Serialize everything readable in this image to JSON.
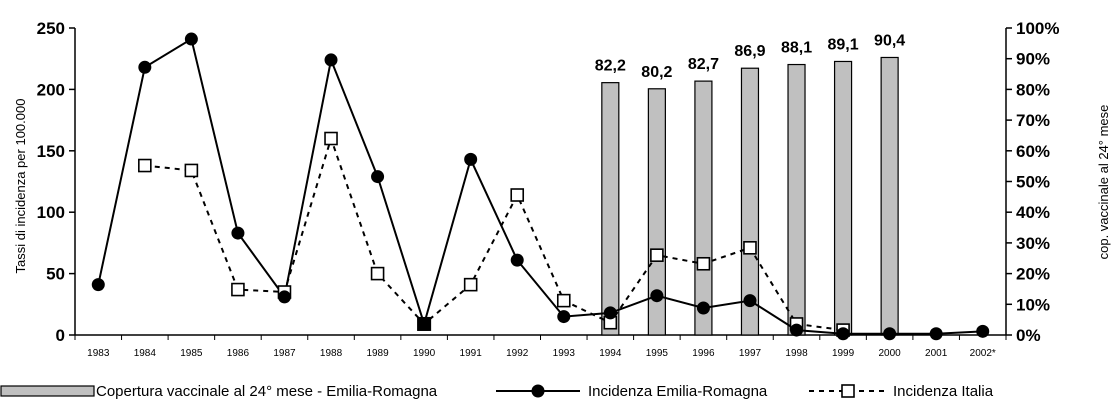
{
  "chart_data": {
    "type": "bar+line",
    "categories": [
      "1983",
      "1984",
      "1985",
      "1986",
      "1987",
      "1988",
      "1989",
      "1990",
      "1991",
      "1992",
      "1993",
      "1994",
      "1995",
      "1996",
      "1997",
      "1998",
      "1999",
      "2000",
      "2001",
      "2002*"
    ],
    "y_left": {
      "label": "Tassi di incidenza per 100.000",
      "min": 0,
      "max": 250,
      "ticks": [
        "0",
        "50",
        "100",
        "150",
        "200",
        "250"
      ]
    },
    "y_right": {
      "label": "cop. vaccinale al 24° mese",
      "min": 0,
      "max": 100,
      "ticks": [
        "0%",
        "10%",
        "20%",
        "30%",
        "40%",
        "50%",
        "60%",
        "70%",
        "80%",
        "90%",
        "100%"
      ]
    },
    "grid": false,
    "legend_position": "bottom",
    "series": [
      {
        "name": "Copertura vaccinale al 24° mese - Emilia-Romagna",
        "kind": "bar",
        "axis": "right",
        "color": "#c0c0c0",
        "values": [
          null,
          null,
          null,
          null,
          null,
          null,
          null,
          null,
          null,
          null,
          null,
          82.2,
          80.2,
          82.7,
          86.9,
          88.1,
          89.1,
          90.4,
          null,
          null
        ],
        "labels": [
          null,
          null,
          null,
          null,
          null,
          null,
          null,
          null,
          null,
          null,
          null,
          "82,2",
          "80,2",
          "82,7",
          "86,9",
          "88,1",
          "89,1",
          "90,4",
          null,
          null
        ]
      },
      {
        "name": "Incidenza Emilia-Romagna",
        "kind": "line",
        "axis": "left",
        "color": "#000000",
        "marker": "filled-circle",
        "line": "solid",
        "values": [
          41,
          218,
          241,
          83,
          31,
          224,
          129,
          9,
          143,
          61,
          15,
          18,
          32,
          22,
          28,
          4,
          1,
          1,
          1,
          3
        ]
      },
      {
        "name": "Incidenza Italia",
        "kind": "line",
        "axis": "left",
        "color": "#000000",
        "marker": "open-square",
        "line": "dashed",
        "values": [
          null,
          138,
          134,
          37,
          35,
          160,
          50,
          9,
          41,
          114,
          28,
          10,
          65,
          58,
          71,
          9,
          4,
          null,
          null,
          null
        ]
      }
    ]
  }
}
